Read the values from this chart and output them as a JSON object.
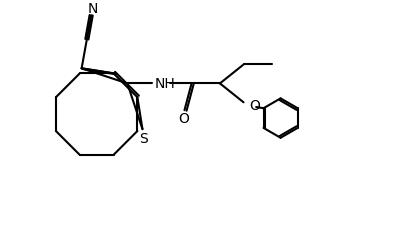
{
  "bg_color": "#ffffff",
  "line_color": "#000000",
  "line_width": 1.5,
  "font_size": 10,
  "figsize": [
    4.06,
    2.26
  ],
  "dpi": 100,
  "xlim": [
    0,
    10
  ],
  "ylim": [
    0,
    5.57
  ]
}
